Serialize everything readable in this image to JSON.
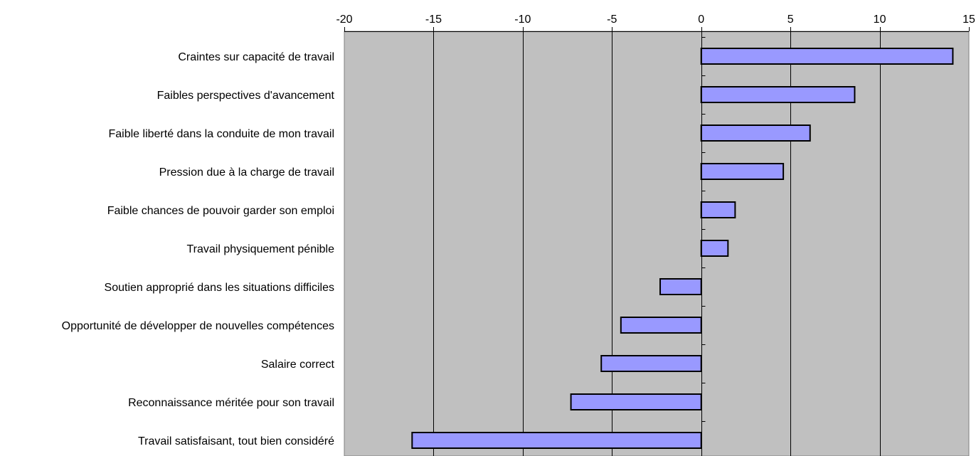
{
  "chart_data": {
    "type": "bar",
    "orientation": "horizontal",
    "categories": [
      "Craintes sur capacité de travail",
      "Faibles perspectives d'avancement ",
      "Faible liberté dans la conduite de mon travail",
      "Pression due à la charge de travail",
      "Faible chances de pouvoir garder son emploi ",
      "Travail physiquement pénible",
      "Soutien approprié dans les situations difficiles",
      "Opportunité de développer de nouvelles compétences",
      "Salaire correct",
      "Reconnaissance méritée pour son travail",
      "Travail satisfaisant, tout bien considéré"
    ],
    "values": [
      14.1,
      8.6,
      6.1,
      4.6,
      1.9,
      1.5,
      -2.3,
      -4.5,
      -5.6,
      -7.3,
      -16.2
    ],
    "xlim": [
      -20,
      15
    ],
    "xticks": [
      -20,
      -15,
      -10,
      -5,
      0,
      5,
      10,
      15
    ],
    "xtick_labels": [
      "-20",
      "-15",
      "-10",
      "-5",
      "0",
      "5",
      "10",
      "15"
    ],
    "x_axis_position": "top",
    "grid": true,
    "title": "",
    "xlabel": "",
    "ylabel": "",
    "colors": {
      "bar_fill": "#9999ff",
      "bar_stroke": "#000000",
      "plot_background": "#c0c0c0",
      "gridline": "#000000"
    }
  }
}
